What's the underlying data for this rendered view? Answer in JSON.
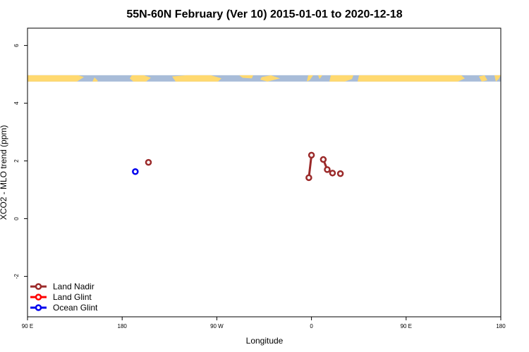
{
  "chart_data": {
    "type": "scatter",
    "title": "55N-60N February (Ver 10)   2015-01-01 to 2020-12-18",
    "xlabel": "Longitude",
    "ylabel": "XCO2 - MLO trend (ppm)",
    "xlim": [
      -90,
      270
    ],
    "ylim": [
      -3.4,
      6.6
    ],
    "x_ticks": [
      {
        "value": -90,
        "label": "90 E"
      },
      {
        "value": -18,
        "label": "180"
      },
      {
        "value": 54,
        "label": "90 W"
      },
      {
        "value": 126,
        "label": "0"
      },
      {
        "value": 198,
        "label": "90 E"
      },
      {
        "value": 270,
        "label": "180"
      }
    ],
    "y_ticks": [
      {
        "value": -2,
        "label": "-2"
      },
      {
        "value": 0,
        "label": "0"
      },
      {
        "value": 2,
        "label": "2"
      },
      {
        "value": 4,
        "label": "4"
      },
      {
        "value": 6,
        "label": "6"
      }
    ],
    "map_band": {
      "y_min": 4.75,
      "y_max": 4.97,
      "ocean_color": "#a8bcd8",
      "land_color": "#ffd970"
    },
    "series": [
      {
        "name": "Land Nadir",
        "color": "#9b2a2a",
        "segments": [
          [
            [
              2,
              1.95
            ]
          ],
          [
            [
              124,
              1.42
            ],
            [
              126,
              2.2
            ]
          ],
          [
            [
              135,
              2.05
            ],
            [
              138,
              1.7
            ],
            [
              142,
              1.58
            ]
          ],
          [
            [
              148,
              1.56
            ]
          ]
        ]
      },
      {
        "name": "Land Glint",
        "color": "#ff0000",
        "segments": []
      },
      {
        "name": "Ocean Glint",
        "color": "#0000ee",
        "segments": [
          [
            [
              -8,
              1.63
            ]
          ]
        ]
      }
    ],
    "legend_position": "bottom-left"
  }
}
